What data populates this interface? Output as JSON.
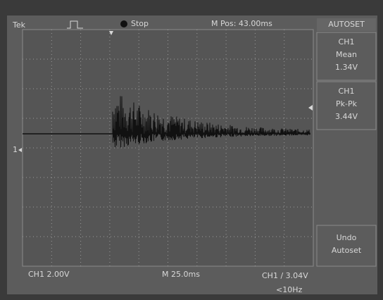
{
  "header": {
    "brand": "Tek",
    "status": "Stop",
    "position": "M Pos: 43.00ms"
  },
  "menu": {
    "title": "AUTOSET",
    "items": [
      {
        "lines": [
          "CH1",
          "Mean",
          "1.34V"
        ]
      },
      {
        "lines": [
          "CH1",
          "Pk-Pk",
          "3.44V"
        ]
      },
      {
        "lines": [
          "Undo",
          "Autoset"
        ]
      }
    ]
  },
  "channel_marker": "1",
  "footer": {
    "scale": "CH1 2.00V",
    "timebase": "M 25.0ms",
    "trigger": "CH1 / 3.04V",
    "frequency": "<10Hz"
  }
}
